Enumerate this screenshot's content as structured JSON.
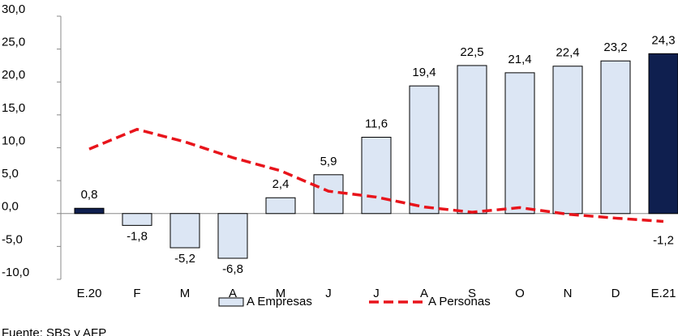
{
  "chart_data": {
    "type": "bar",
    "categories": [
      "E.20",
      "F",
      "M",
      "A",
      "M",
      "J",
      "J",
      "A",
      "S",
      "O",
      "N",
      "D",
      "E.21"
    ],
    "series": [
      {
        "name": "A Empresas",
        "type": "bar",
        "color": "#dce6f4",
        "edge": "#000000",
        "colors": [
          "#0f1f4f",
          "#dce6f4",
          "#dce6f4",
          "#dce6f4",
          "#dce6f4",
          "#dce6f4",
          "#dce6f4",
          "#dce6f4",
          "#dce6f4",
          "#dce6f4",
          "#dce6f4",
          "#dce6f4",
          "#0f1f4f"
        ],
        "values": [
          0.8,
          -1.8,
          -5.2,
          -6.8,
          2.4,
          5.9,
          11.6,
          19.4,
          22.5,
          21.4,
          22.4,
          23.2,
          24.3
        ],
        "value_labels": [
          "0,8",
          "-1,8",
          "-5,2",
          "-6,8",
          "2,4",
          "5,9",
          "11,6",
          "19,4",
          "22,5",
          "21,4",
          "22,4",
          "23,2",
          "24,3"
        ]
      },
      {
        "name": "A Personas",
        "type": "line",
        "color": "#e8141b",
        "values": [
          9.8,
          12.8,
          10.9,
          8.5,
          6.5,
          3.4,
          2.5,
          1.0,
          0.2,
          0.9,
          -0.1,
          -0.7,
          -1.2
        ],
        "value_labels": [
          null,
          null,
          null,
          null,
          null,
          null,
          null,
          null,
          null,
          null,
          null,
          null,
          "-1,2"
        ]
      }
    ],
    "ylim": [
      -10,
      30
    ],
    "yticks": [
      {
        "value": -10,
        "label": "-10,0"
      },
      {
        "value": -5,
        "label": "-5,0"
      },
      {
        "value": 0,
        "label": "0,0"
      },
      {
        "value": 5,
        "label": "5,0"
      },
      {
        "value": 10,
        "label": "10,0"
      },
      {
        "value": 15,
        "label": "15,0"
      },
      {
        "value": 20,
        "label": "20,0"
      },
      {
        "value": 25,
        "label": "25,0"
      },
      {
        "value": 30,
        "label": "30,0"
      }
    ],
    "source": "Fuente: SBS y AFP"
  }
}
